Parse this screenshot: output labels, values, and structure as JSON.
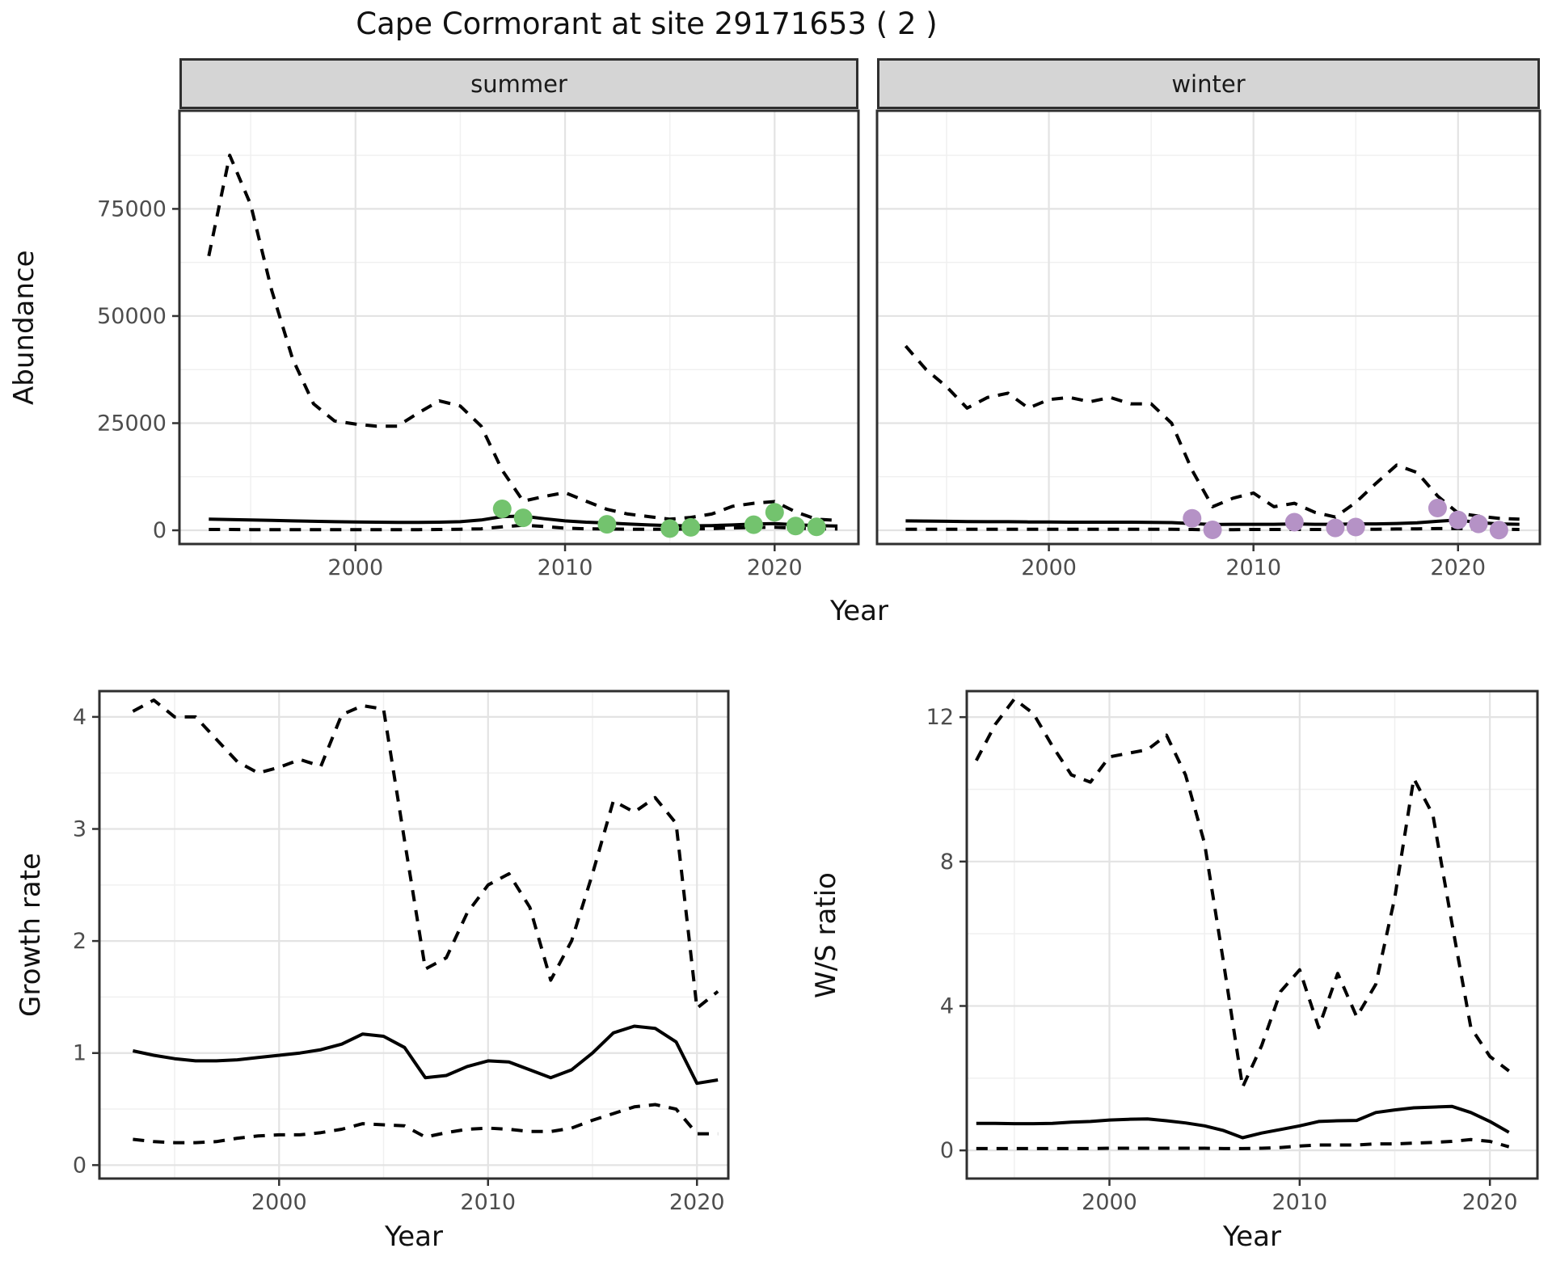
{
  "title": "Cape Cormorant at site 29171653 ( 2 )",
  "colors": {
    "line": "#000000",
    "summer_point": "#73c36e",
    "winter_point": "#b592c6",
    "grid_major": "#e3e3e3",
    "grid_minor": "#f0f0f0",
    "panel_border": "#2f2f2f",
    "strip_bg": "#d5d5d5",
    "tick_text": "#4d4d4d"
  },
  "chart_data": [
    {
      "id": "abundance_summer",
      "type": "line",
      "facet": "summer",
      "ylabel": "Abundance",
      "xlabel": "Year",
      "xlim": [
        1991.6,
        2024.0
      ],
      "ylim": [
        -3200,
        97900
      ],
      "xticks": [
        2000,
        2010,
        2020
      ],
      "yticks": [
        0,
        25000,
        50000,
        75000
      ],
      "grid": true,
      "legend": "none",
      "x": [
        1993,
        1994,
        1995,
        1996,
        1997,
        1998,
        1999,
        2000,
        2001,
        2002,
        2003,
        2004,
        2005,
        2006,
        2007,
        2008,
        2009,
        2010,
        2011,
        2012,
        2013,
        2014,
        2015,
        2016,
        2017,
        2018,
        2019,
        2020,
        2021,
        2022,
        2023
      ],
      "series": [
        {
          "name": "upper_ci_dashed",
          "style": "dashed",
          "values": [
            64000,
            87500,
            76000,
            56000,
            40000,
            29500,
            25500,
            24800,
            24300,
            24300,
            27400,
            30200,
            29000,
            24300,
            14000,
            6800,
            7900,
            8800,
            6800,
            4900,
            3800,
            3200,
            2600,
            3000,
            3800,
            5600,
            6300,
            6700,
            4300,
            2600,
            2300
          ]
        },
        {
          "name": "median_solid",
          "style": "solid",
          "values": [
            2600,
            2500,
            2400,
            2300,
            2200,
            2100,
            2000,
            1950,
            1900,
            1850,
            1850,
            1900,
            2000,
            2400,
            3200,
            3300,
            2700,
            2200,
            1900,
            1700,
            1450,
            1250,
            1100,
            1050,
            1100,
            1250,
            1450,
            1550,
            1300,
            1100,
            1000
          ]
        },
        {
          "name": "lower_ci_dashed",
          "style": "dashed",
          "values": [
            200,
            200,
            150,
            150,
            150,
            150,
            150,
            150,
            150,
            150,
            150,
            200,
            250,
            350,
            800,
            1200,
            900,
            500,
            350,
            300,
            250,
            250,
            250,
            300,
            400,
            550,
            650,
            700,
            500,
            350,
            300
          ]
        }
      ],
      "points": {
        "name": "observed_counts",
        "color": "#73c36e",
        "x": [
          2007,
          2008,
          2012,
          2015,
          2016,
          2019,
          2020,
          2021,
          2022
        ],
        "y": [
          5000,
          2900,
          1400,
          400,
          700,
          1300,
          4200,
          1000,
          800
        ]
      }
    },
    {
      "id": "abundance_winter",
      "type": "line",
      "facet": "winter",
      "ylabel": "Abundance",
      "xlabel": "Year",
      "xlim": [
        1991.6,
        2024.0
      ],
      "ylim": [
        -3200,
        97900
      ],
      "xticks": [
        2000,
        2010,
        2020
      ],
      "yticks": [
        0,
        25000,
        50000,
        75000
      ],
      "grid": true,
      "legend": "none",
      "x": [
        1993,
        1994,
        1995,
        1996,
        1997,
        1998,
        1999,
        2000,
        2001,
        2002,
        2003,
        2004,
        2005,
        2006,
        2007,
        2008,
        2009,
        2010,
        2011,
        2012,
        2013,
        2014,
        2015,
        2016,
        2017,
        2018,
        2019,
        2020,
        2021,
        2022,
        2023
      ],
      "series": [
        {
          "name": "upper_ci_dashed",
          "style": "dashed",
          "values": [
            43000,
            37500,
            33500,
            28500,
            31000,
            32000,
            28500,
            30500,
            31000,
            30000,
            31000,
            29500,
            29500,
            25000,
            14000,
            5500,
            7500,
            8700,
            5500,
            6300,
            4200,
            3100,
            6500,
            11000,
            15200,
            13500,
            8000,
            4000,
            3300,
            2800,
            2600
          ]
        },
        {
          "name": "median_solid",
          "style": "solid",
          "values": [
            2200,
            2150,
            2100,
            2050,
            2000,
            2000,
            1950,
            1950,
            1900,
            1900,
            1900,
            1900,
            1850,
            1800,
            1550,
            1350,
            1400,
            1400,
            1400,
            1500,
            1400,
            1400,
            1500,
            1500,
            1600,
            1750,
            2100,
            2400,
            1800,
            1500,
            1400
          ]
        },
        {
          "name": "lower_ci_dashed",
          "style": "dashed",
          "values": [
            250,
            250,
            250,
            250,
            250,
            250,
            250,
            250,
            250,
            250,
            250,
            250,
            250,
            250,
            200,
            100,
            150,
            200,
            200,
            200,
            200,
            200,
            250,
            250,
            300,
            350,
            400,
            400,
            300,
            250,
            200
          ]
        }
      ],
      "points": {
        "name": "observed_counts",
        "color": "#b592c6",
        "x": [
          2007,
          2008,
          2012,
          2014,
          2015,
          2019,
          2020,
          2021,
          2022
        ],
        "y": [
          2800,
          100,
          1900,
          550,
          750,
          5200,
          2400,
          1500,
          50
        ]
      }
    },
    {
      "id": "growth_rate",
      "type": "line",
      "facet": "",
      "ylabel": "Growth rate",
      "xlabel": "Year",
      "xlim": [
        1991.4,
        2021.5
      ],
      "ylim": [
        -0.12,
        4.23
      ],
      "xticks": [
        2000,
        2010,
        2020
      ],
      "yticks": [
        0,
        1,
        2,
        3,
        4
      ],
      "grid": true,
      "legend": "none",
      "x": [
        1993,
        1994,
        1995,
        1996,
        1997,
        1998,
        1999,
        2000,
        2001,
        2002,
        2003,
        2004,
        2005,
        2006,
        2007,
        2008,
        2009,
        2010,
        2011,
        2012,
        2013,
        2014,
        2015,
        2016,
        2017,
        2018,
        2019,
        2020,
        2021
      ],
      "series": [
        {
          "name": "upper_ci_dashed",
          "style": "dashed",
          "values": [
            4.05,
            4.15,
            4.0,
            4.0,
            3.8,
            3.6,
            3.5,
            3.55,
            3.62,
            3.56,
            4.02,
            4.1,
            4.07,
            2.9,
            1.75,
            1.85,
            2.25,
            2.5,
            2.6,
            2.3,
            1.65,
            2.0,
            2.6,
            3.25,
            3.15,
            3.28,
            3.05,
            1.4,
            1.55
          ]
        },
        {
          "name": "median_solid",
          "style": "solid",
          "values": [
            1.02,
            0.98,
            0.95,
            0.93,
            0.93,
            0.94,
            0.96,
            0.98,
            1.0,
            1.03,
            1.08,
            1.17,
            1.15,
            1.05,
            0.78,
            0.8,
            0.88,
            0.93,
            0.92,
            0.85,
            0.78,
            0.85,
            1.0,
            1.18,
            1.24,
            1.22,
            1.1,
            0.73,
            0.76
          ]
        },
        {
          "name": "lower_ci_dashed",
          "style": "dashed",
          "values": [
            0.23,
            0.21,
            0.2,
            0.2,
            0.21,
            0.24,
            0.26,
            0.27,
            0.27,
            0.29,
            0.32,
            0.37,
            0.36,
            0.35,
            0.25,
            0.29,
            0.32,
            0.33,
            0.32,
            0.3,
            0.3,
            0.33,
            0.4,
            0.46,
            0.52,
            0.54,
            0.5,
            0.28,
            0.28
          ]
        }
      ],
      "points": null
    },
    {
      "id": "ws_ratio",
      "type": "line",
      "facet": "",
      "ylabel": "W/S ratio",
      "xlabel": "Year",
      "xlim": [
        1992.5,
        2022.5
      ],
      "ylim": [
        -0.78,
        12.72
      ],
      "xticks": [
        2000,
        2010,
        2020
      ],
      "yticks": [
        0,
        4,
        8,
        12
      ],
      "grid": true,
      "legend": "none",
      "x": [
        1993,
        1994,
        1995,
        1996,
        1997,
        1998,
        1999,
        2000,
        2001,
        2002,
        2003,
        2004,
        2005,
        2006,
        2007,
        2008,
        2009,
        2010,
        2011,
        2012,
        2013,
        2014,
        2015,
        2016,
        2017,
        2018,
        2019,
        2020,
        2021
      ],
      "series": [
        {
          "name": "upper_ci_dashed",
          "style": "dashed",
          "values": [
            10.8,
            11.8,
            12.5,
            12.1,
            11.2,
            10.4,
            10.2,
            10.9,
            11.0,
            11.1,
            11.5,
            10.4,
            8.5,
            5.2,
            1.75,
            2.9,
            4.4,
            5.0,
            3.4,
            4.9,
            3.7,
            4.6,
            7.0,
            10.3,
            9.3,
            6.3,
            3.4,
            2.6,
            2.2
          ]
        },
        {
          "name": "median_solid",
          "style": "solid",
          "values": [
            0.75,
            0.75,
            0.74,
            0.74,
            0.75,
            0.78,
            0.8,
            0.84,
            0.86,
            0.87,
            0.82,
            0.76,
            0.68,
            0.55,
            0.35,
            0.48,
            0.58,
            0.68,
            0.8,
            0.82,
            0.83,
            1.05,
            1.12,
            1.18,
            1.2,
            1.22,
            1.05,
            0.8,
            0.5
          ]
        },
        {
          "name": "lower_ci_dashed",
          "style": "dashed",
          "values": [
            0.05,
            0.05,
            0.05,
            0.05,
            0.05,
            0.05,
            0.05,
            0.06,
            0.06,
            0.06,
            0.06,
            0.06,
            0.06,
            0.05,
            0.05,
            0.06,
            0.08,
            0.12,
            0.15,
            0.15,
            0.15,
            0.18,
            0.18,
            0.2,
            0.22,
            0.25,
            0.3,
            0.25,
            0.1
          ]
        }
      ],
      "points": null
    }
  ]
}
